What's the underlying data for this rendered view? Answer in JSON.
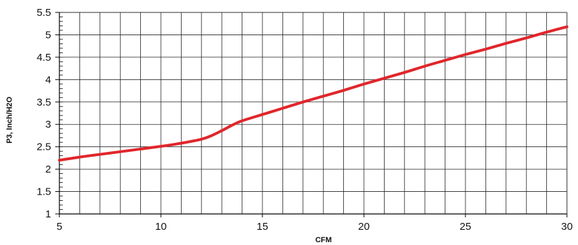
{
  "colors": {
    "line": "#e0262b",
    "grid": "#222222",
    "axis": "#000000",
    "background": "#ffffff"
  },
  "chart_data": {
    "type": "line",
    "title": "",
    "xlabel": "CFM",
    "ylabel": "P3, Inch/H2O",
    "xlim": [
      5,
      30
    ],
    "ylim": [
      1,
      5.5
    ],
    "grid": true,
    "x_ticks": [
      5,
      10,
      15,
      20,
      25,
      30
    ],
    "x_tick_labels": [
      "5",
      "10",
      "15",
      "20",
      "25",
      "30"
    ],
    "y_ticks": [
      1,
      1.5,
      2,
      2.5,
      3,
      3.5,
      4,
      4.5,
      5,
      5.5
    ],
    "y_tick_labels": [
      "1",
      "1.5",
      "2",
      "2.5",
      "3",
      "3.5",
      "4",
      "4.5",
      "5",
      "5.5"
    ],
    "series": [
      {
        "x": [
          5,
          6,
          7,
          8,
          9,
          10,
          11,
          12,
          12.5,
          13,
          13.5,
          14,
          15,
          16,
          17,
          18,
          19,
          20,
          21,
          22,
          23,
          24,
          25,
          26,
          27,
          28,
          29,
          30
        ],
        "values": [
          2.2,
          2.27,
          2.33,
          2.39,
          2.45,
          2.51,
          2.58,
          2.67,
          2.75,
          2.86,
          2.98,
          3.08,
          3.22,
          3.36,
          3.5,
          3.63,
          3.76,
          3.9,
          4.03,
          4.16,
          4.3,
          4.43,
          4.56,
          4.68,
          4.81,
          4.93,
          5.06,
          5.18
        ]
      }
    ]
  }
}
